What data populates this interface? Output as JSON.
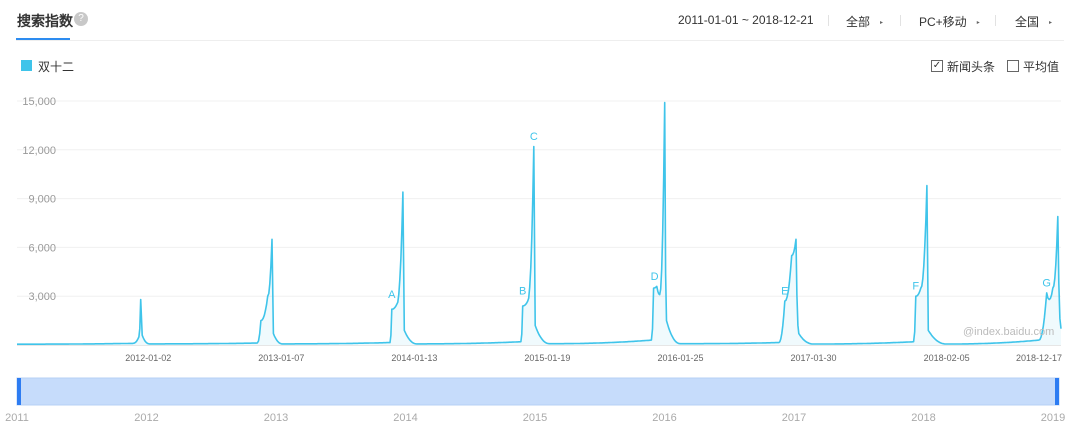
{
  "header": {
    "title": "搜索指数",
    "help_icon": "?",
    "date_range": "2011-01-01 ~ 2018-12-21",
    "source_filter": "全部",
    "device_filter": "PC+移动",
    "region_filter": "全国",
    "caret": "▸"
  },
  "legend": {
    "series_label": "双十二",
    "series_color": "#3fc4ea"
  },
  "options": {
    "news_checkbox_label": "新闻头条",
    "news_checked": true,
    "avg_checkbox_label": "平均值",
    "avg_checked": false,
    "check_mark": "✓"
  },
  "watermark": "@index.baidu.com",
  "chart_data": {
    "type": "area",
    "y_ticks": [
      "3,000",
      "6,000",
      "9,000",
      "12,000",
      "15,000"
    ],
    "y_tick_values": [
      3000,
      6000,
      9000,
      12000,
      15000
    ],
    "ylim": [
      0,
      15000
    ],
    "x_ticks": [
      "2012-01-02",
      "2013-01-07",
      "2014-01-13",
      "2015-01-19",
      "2016-01-25",
      "2017-01-30",
      "2018-02-05",
      "2018-12-17"
    ],
    "xlim": [
      "2011-01-01",
      "2018-12-21"
    ],
    "grid": true,
    "series": [
      {
        "name": "双十二",
        "color": "#3fc4ea",
        "points": [
          [
            "2011-01-01",
            50
          ],
          [
            "2011-11-20",
            100
          ],
          [
            "2011-12-07",
            500
          ],
          [
            "2011-12-12",
            2800
          ],
          [
            "2011-12-16",
            600
          ],
          [
            "2012-01-05",
            70
          ],
          [
            "2012-11-01",
            120
          ],
          [
            "2012-11-11",
            1500
          ],
          [
            "2012-11-30",
            3000
          ],
          [
            "2012-12-12",
            6500
          ],
          [
            "2012-12-16",
            700
          ],
          [
            "2013-01-10",
            70
          ],
          [
            "2013-11-06",
            150
          ],
          [
            "2013-11-11",
            2200
          ],
          [
            "2013-11-25",
            2500
          ],
          [
            "2013-12-12",
            9400
          ],
          [
            "2013-12-16",
            900
          ],
          [
            "2014-01-20",
            70
          ],
          [
            "2014-11-06",
            200
          ],
          [
            "2014-11-11",
            2400
          ],
          [
            "2014-11-25",
            2700
          ],
          [
            "2014-12-12",
            12200
          ],
          [
            "2014-12-16",
            1200
          ],
          [
            "2015-01-25",
            80
          ],
          [
            "2015-11-05",
            300
          ],
          [
            "2015-11-11",
            3500
          ],
          [
            "2015-11-20",
            3600
          ],
          [
            "2015-11-28",
            3100
          ],
          [
            "2015-12-12",
            14900
          ],
          [
            "2015-12-17",
            1500
          ],
          [
            "2016-01-25",
            80
          ],
          [
            "2016-10-25",
            150
          ],
          [
            "2016-11-11",
            2700
          ],
          [
            "2016-11-30",
            5500
          ],
          [
            "2016-12-12",
            6500
          ],
          [
            "2016-12-20",
            700
          ],
          [
            "2017-01-30",
            60
          ],
          [
            "2017-11-05",
            200
          ],
          [
            "2017-11-11",
            3000
          ],
          [
            "2017-11-25",
            3500
          ],
          [
            "2017-12-12",
            9800
          ],
          [
            "2017-12-16",
            900
          ],
          [
            "2018-02-05",
            60
          ],
          [
            "2018-10-20",
            300
          ],
          [
            "2018-11-11",
            3200
          ],
          [
            "2018-11-18",
            2800
          ],
          [
            "2018-11-28",
            3500
          ],
          [
            "2018-12-12",
            7900
          ],
          [
            "2018-12-21",
            1000
          ]
        ]
      }
    ],
    "annotations": [
      {
        "label": "A",
        "x": "2013-11-11",
        "y": 2900
      },
      {
        "label": "B",
        "x": "2014-11-11",
        "y": 3100
      },
      {
        "label": "C",
        "x": "2014-12-12",
        "y": 12600
      },
      {
        "label": "D",
        "x": "2015-11-14",
        "y": 4000
      },
      {
        "label": "E",
        "x": "2016-11-11",
        "y": 3100
      },
      {
        "label": "F",
        "x": "2017-11-11",
        "y": 3400
      },
      {
        "label": "G",
        "x": "2018-11-11",
        "y": 3600
      }
    ],
    "navigator": {
      "year_ticks": [
        "2011",
        "2012",
        "2013",
        "2014",
        "2015",
        "2016",
        "2017",
        "2018",
        "2019"
      ],
      "selected_range": [
        "2011-01-01",
        "2018-12-21"
      ]
    }
  }
}
